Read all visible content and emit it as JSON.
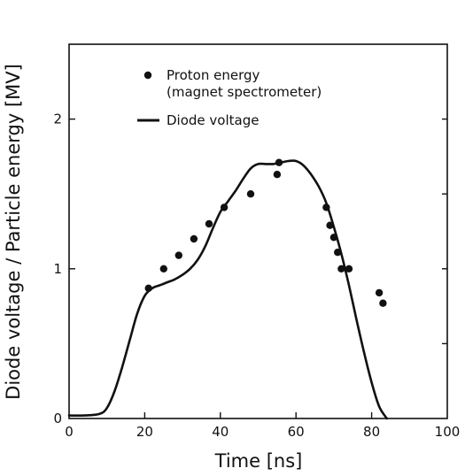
{
  "chart_data": {
    "type": "line",
    "title": "",
    "xlabel": "Time [ns]",
    "ylabel": "Diode voltage / Particle energy [MV]",
    "xlim": [
      0,
      100
    ],
    "ylim": [
      0,
      2.5
    ],
    "x_ticks": [
      0,
      20,
      40,
      60,
      80,
      100
    ],
    "y_ticks": [
      0,
      1,
      2
    ],
    "x_tick_labels": [
      "0",
      "20",
      "40",
      "60",
      "80",
      "100"
    ],
    "y_tick_labels": [
      "0",
      "1",
      "2"
    ],
    "grid": false,
    "legend_position": "top-left",
    "legend": {
      "proton_line1": "Proton energy",
      "proton_line2": "(magnet spectrometer)",
      "diode": "Diode voltage"
    },
    "series": [
      {
        "name": "Diode voltage",
        "kind": "line",
        "color": "#111111",
        "x": [
          0,
          4,
          8,
          10,
          12,
          14,
          16,
          18,
          20,
          22,
          24,
          26,
          28,
          30,
          32,
          34,
          36,
          38,
          40,
          42,
          44,
          46,
          48,
          50,
          52,
          54,
          56,
          58,
          60,
          62,
          64,
          66,
          68,
          70,
          72,
          74,
          76,
          78,
          80,
          82,
          84
        ],
        "y": [
          0.02,
          0.02,
          0.03,
          0.07,
          0.18,
          0.34,
          0.52,
          0.7,
          0.82,
          0.87,
          0.89,
          0.91,
          0.93,
          0.96,
          1.0,
          1.06,
          1.15,
          1.27,
          1.38,
          1.45,
          1.52,
          1.6,
          1.67,
          1.7,
          1.7,
          1.7,
          1.71,
          1.72,
          1.72,
          1.69,
          1.63,
          1.55,
          1.44,
          1.28,
          1.1,
          0.89,
          0.66,
          0.44,
          0.24,
          0.08,
          0.0
        ]
      },
      {
        "name": "Proton energy (magnet spectrometer)",
        "kind": "scatter",
        "color": "#111111",
        "x": [
          21,
          25,
          29,
          33,
          37,
          41,
          48,
          55,
          55.5,
          68,
          69,
          70,
          71,
          72,
          74,
          82,
          83
        ],
        "y": [
          0.87,
          1.0,
          1.09,
          1.2,
          1.3,
          1.41,
          1.5,
          1.63,
          1.71,
          1.41,
          1.29,
          1.21,
          1.11,
          1.0,
          1.0,
          0.84,
          0.77
        ]
      }
    ]
  }
}
